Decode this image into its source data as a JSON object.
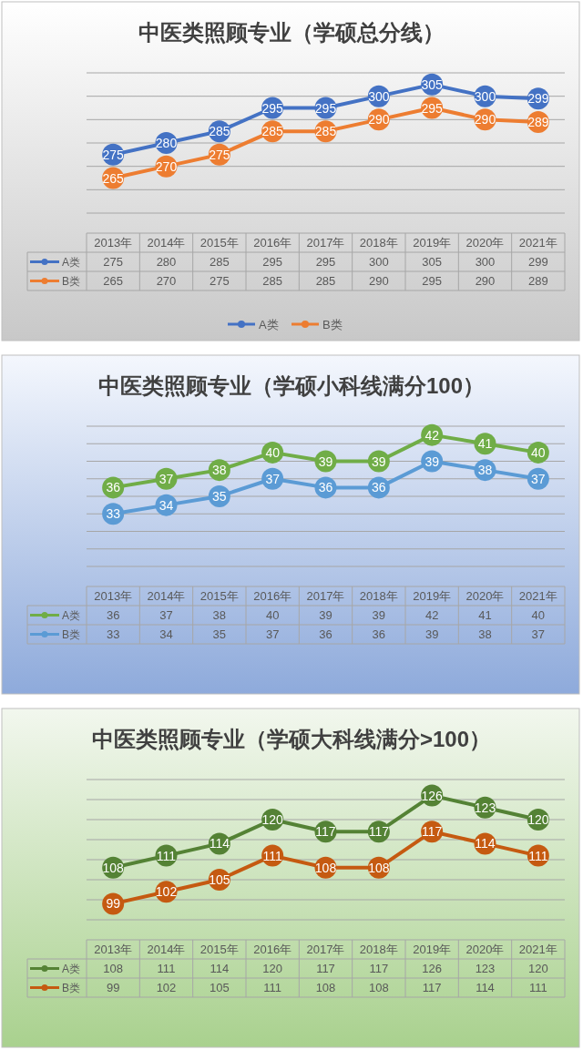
{
  "chart_data": [
    {
      "type": "line",
      "title": "中医类照顾专业（学硕总分线）",
      "categories": [
        "2013年",
        "2014年",
        "2015年",
        "2016年",
        "2017年",
        "2018年",
        "2019年",
        "2020年",
        "2021年"
      ],
      "series": [
        {
          "name": "A类",
          "color": "#4472c4",
          "values": [
            275,
            280,
            285,
            295,
            295,
            300,
            305,
            300,
            299
          ],
          "value_labels": [
            "275",
            "280",
            "285",
            "295",
            "295",
            "300",
            "305",
            "300",
            "299"
          ]
        },
        {
          "name": "B类",
          "color": "#ed7d31",
          "values": [
            265,
            270,
            275,
            285,
            285,
            290,
            295,
            290,
            289
          ],
          "value_labels": [
            "265",
            "270",
            "275",
            "285",
            "285",
            "290",
            "295",
            "290",
            "289"
          ]
        }
      ],
      "ylim": [
        250,
        310
      ],
      "yticks": [
        {
          "value": 250,
          "label": null
        },
        {
          "value": 260,
          "label": null
        },
        {
          "value": 270,
          "label": null
        },
        {
          "value": 280,
          "label": null
        },
        {
          "value": 290,
          "label": null
        },
        {
          "value": 300,
          "label": null
        },
        {
          "value": 310,
          "label": null
        }
      ],
      "annotations": [
        "275",
        "280",
        "285",
        "295",
        "295",
        "300",
        "305",
        "300",
        "299",
        "265",
        "270",
        "275",
        "285",
        "285",
        "290",
        "295",
        "290",
        "289"
      ],
      "tick_labels": "x",
      "grid": "y",
      "marker": "circle",
      "legend": "bottom"
    },
    {
      "type": "line",
      "title": "中医类照顾专业（学硕小科线满分100）",
      "categories": [
        "2013年",
        "2014年",
        "2015年",
        "2016年",
        "2017年",
        "2018年",
        "2019年",
        "2020年",
        "2021年"
      ],
      "series": [
        {
          "name": "A类",
          "color": "#70ad47",
          "values": [
            36,
            37,
            38,
            40,
            39,
            39,
            42,
            41,
            40
          ],
          "value_labels": [
            "36",
            "37",
            "38",
            "40",
            "39",
            "39",
            "42",
            "41",
            "40"
          ]
        },
        {
          "name": "B类",
          "color": "#5b9bd5",
          "values": [
            33,
            34,
            35,
            37,
            36,
            36,
            39,
            38,
            37
          ],
          "value_labels": [
            "33",
            "34",
            "35",
            "37",
            "36",
            "36",
            "39",
            "38",
            "37"
          ]
        }
      ],
      "ylim": [
        27,
        43
      ],
      "yticks": [
        {
          "value": 27,
          "label": null
        },
        {
          "value": 29,
          "label": null
        },
        {
          "value": 31,
          "label": null
        },
        {
          "value": 33,
          "label": null
        },
        {
          "value": 35,
          "label": null
        },
        {
          "value": 37,
          "label": null
        },
        {
          "value": 39,
          "label": null
        },
        {
          "value": 41,
          "label": null
        },
        {
          "value": 43,
          "label": null
        }
      ],
      "annotations": [
        "36",
        "37",
        "38",
        "40",
        "39",
        "39",
        "42",
        "41",
        "40",
        "33",
        "34",
        "35",
        "37",
        "36",
        "36",
        "39",
        "38",
        "37"
      ],
      "tick_labels": "x",
      "grid": "y",
      "marker": "circle",
      "legend": "bottom left"
    },
    {
      "type": "line",
      "title": "中医类照顾专业（学硕大科线满分>100）",
      "categories": [
        "2013年",
        "2014年",
        "2015年",
        "2016年",
        "2017年",
        "2018年",
        "2019年",
        "2020年",
        "2021年"
      ],
      "series": [
        {
          "name": "A类",
          "color": "#548235",
          "values": [
            108,
            111,
            114,
            120,
            117,
            117,
            126,
            123,
            120
          ],
          "value_labels": [
            "108",
            "111",
            "114",
            "120",
            "117",
            "117",
            "126",
            "123",
            "120"
          ]
        },
        {
          "name": "B类",
          "color": "#c55a11",
          "values": [
            99,
            102,
            105,
            111,
            108,
            108,
            117,
            114,
            111
          ],
          "value_labels": [
            "99",
            "102",
            "105",
            "111",
            "108",
            "108",
            "117",
            "114",
            "111"
          ]
        }
      ],
      "ylim": [
        95,
        130
      ],
      "yticks": [
        {
          "value": 95,
          "label": null
        },
        {
          "value": 100,
          "label": null
        },
        {
          "value": 105,
          "label": null
        },
        {
          "value": 110,
          "label": null
        },
        {
          "value": 115,
          "label": null
        },
        {
          "value": 120,
          "label": null
        },
        {
          "value": 125,
          "label": null
        },
        {
          "value": 130,
          "label": null
        }
      ],
      "annotations": [
        "108",
        "111",
        "114",
        "120",
        "117",
        "117",
        "126",
        "123",
        "120",
        "99",
        "102",
        "105",
        "111",
        "108",
        "108",
        "117",
        "114",
        "111"
      ],
      "tick_labels": "x",
      "grid": "y",
      "marker": "circle",
      "legend": "bottom left"
    }
  ]
}
